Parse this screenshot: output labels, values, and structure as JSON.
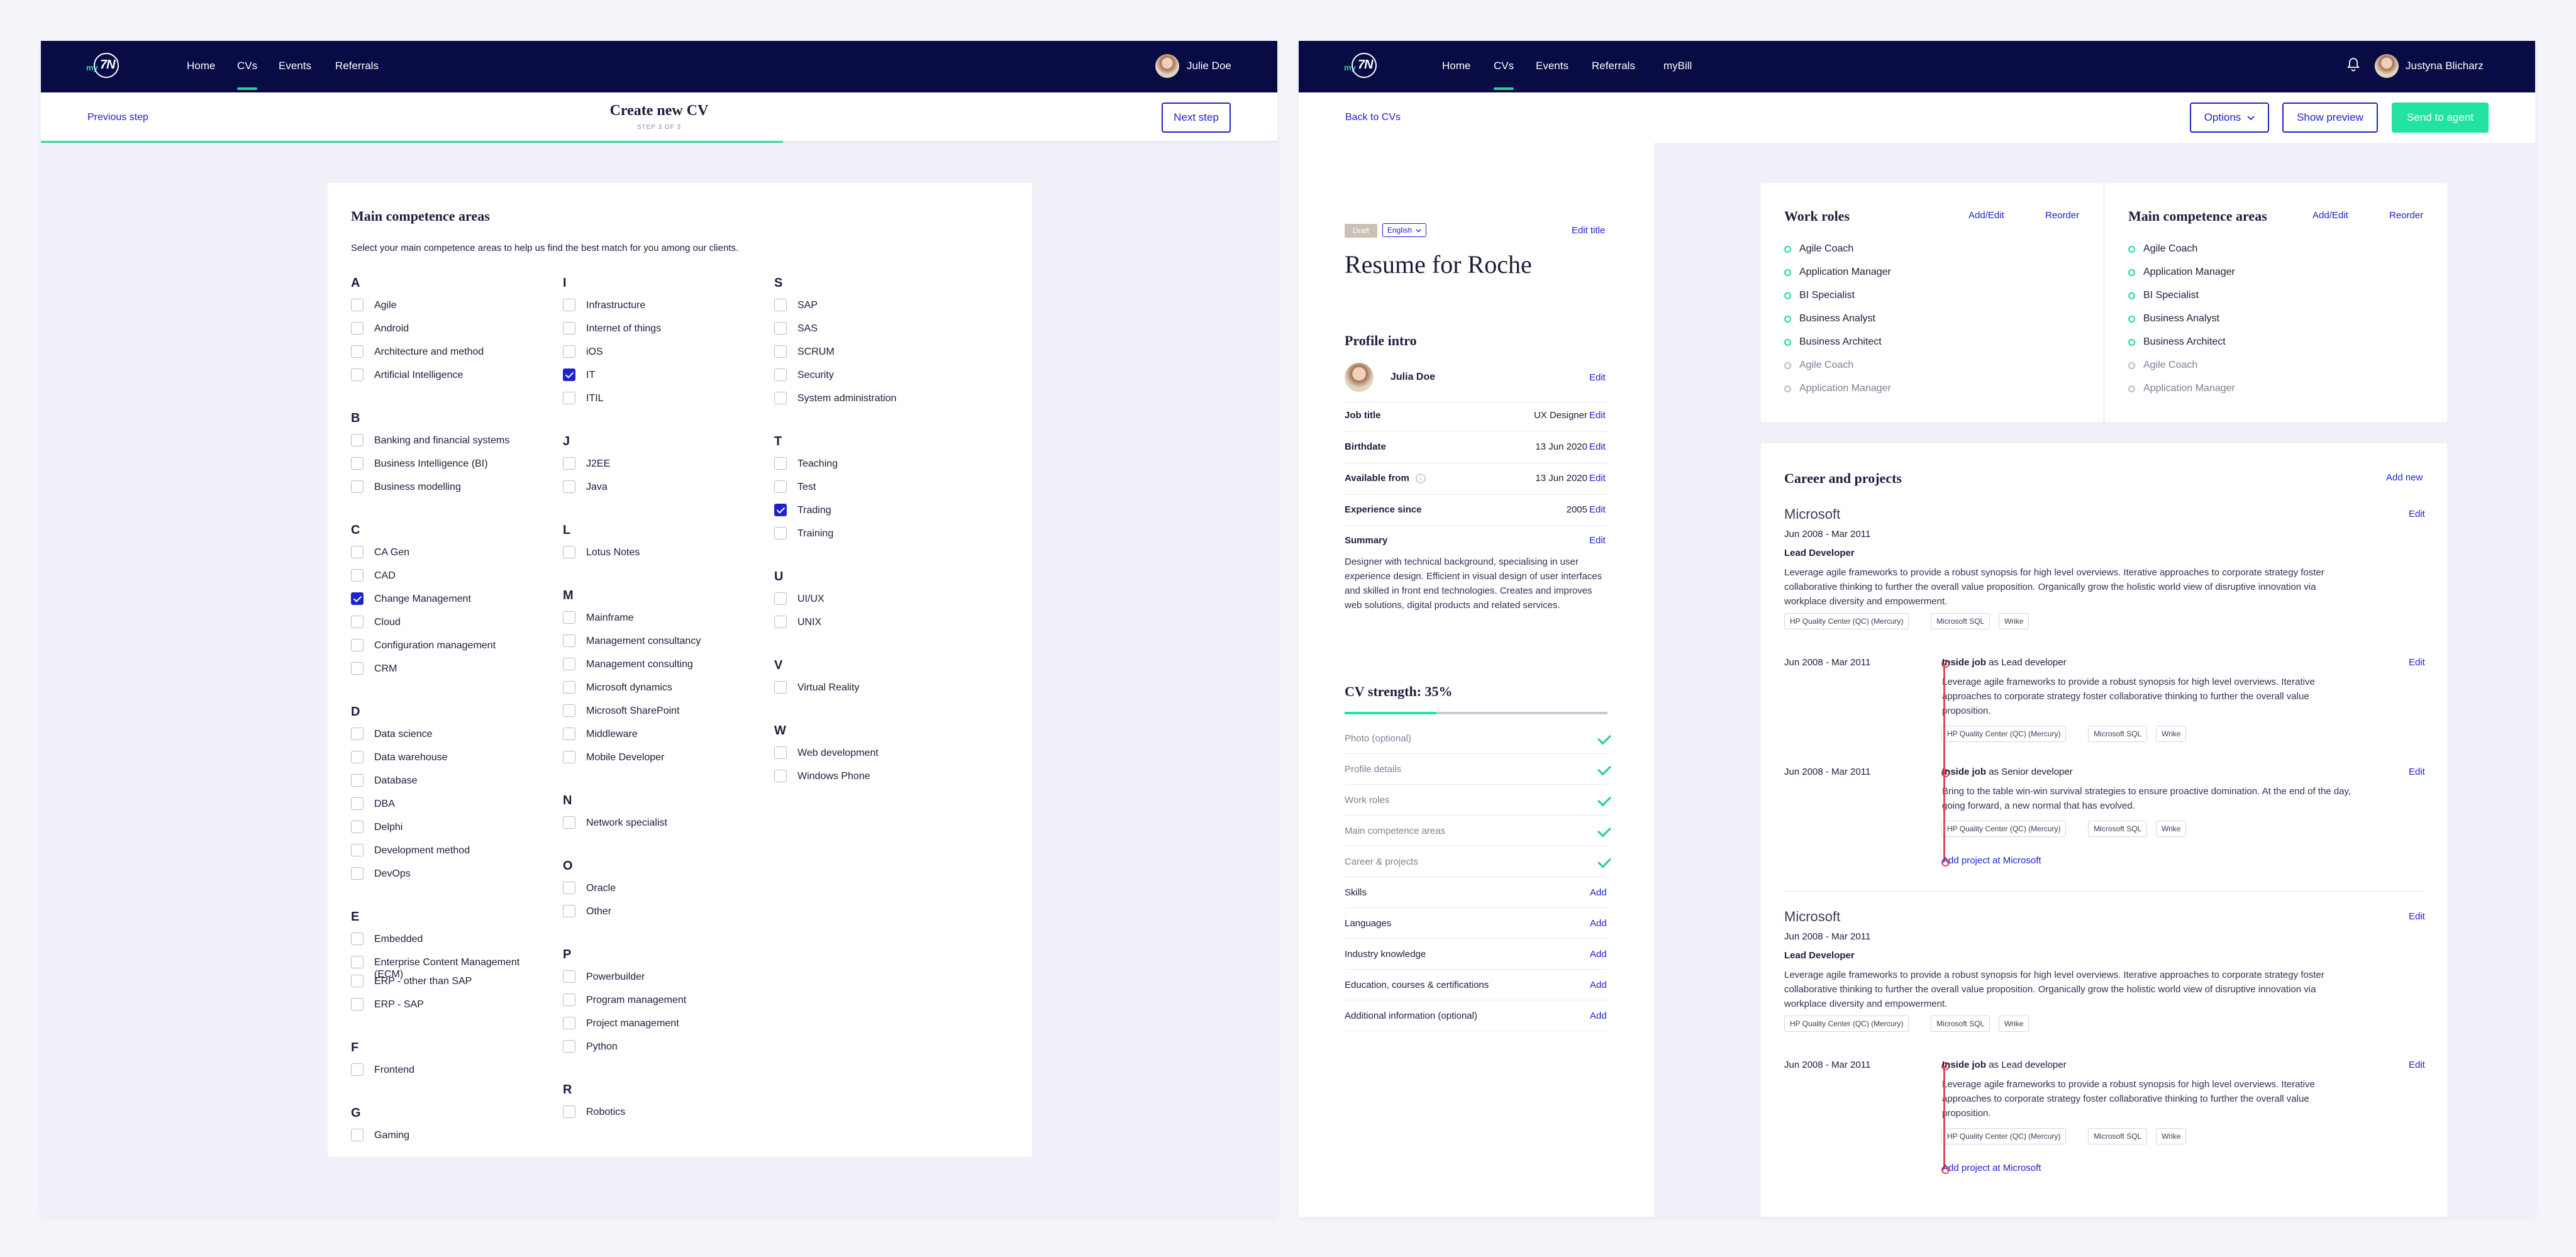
{
  "left": {
    "nav": {
      "links": [
        "Home",
        "CVs",
        "Events",
        "Referrals"
      ],
      "user": "Julie Doe"
    },
    "subbar": {
      "prev": "Previous step",
      "title": "Create new CV",
      "step": "STEP 3 OF 3",
      "next": "Next step"
    },
    "progress_fraction": 0.6,
    "card": {
      "title": "Main competence areas",
      "desc": "Select your main competence areas to help us find the best match for you among our clients.",
      "columns": [
        [
          {
            "letter": "A",
            "items": [
              {
                "label": "Agile",
                "checked": false
              },
              {
                "label": "Android",
                "checked": false
              },
              {
                "label": "Architecture and method",
                "checked": false
              },
              {
                "label": "Artificial Intelligence",
                "checked": false
              }
            ]
          },
          {
            "letter": "B",
            "items": [
              {
                "label": "Banking and financial systems",
                "checked": false
              },
              {
                "label": "Business Intelligence (BI)",
                "checked": false
              },
              {
                "label": "Business modelling",
                "checked": false
              }
            ]
          },
          {
            "letter": "C",
            "items": [
              {
                "label": "CA Gen",
                "checked": false
              },
              {
                "label": "CAD",
                "checked": false
              },
              {
                "label": "Change Management",
                "checked": true
              },
              {
                "label": "Cloud",
                "checked": false
              },
              {
                "label": "Configuration management",
                "checked": false
              },
              {
                "label": "CRM",
                "checked": false
              }
            ]
          },
          {
            "letter": "D",
            "items": [
              {
                "label": "Data science",
                "checked": false
              },
              {
                "label": "Data warehouse",
                "checked": false
              },
              {
                "label": "Database",
                "checked": false
              },
              {
                "label": "DBA",
                "checked": false
              },
              {
                "label": "Delphi",
                "checked": false
              },
              {
                "label": "Development method",
                "checked": false
              },
              {
                "label": "DevOps",
                "checked": false
              }
            ]
          },
          {
            "letter": "E",
            "items": [
              {
                "label": "Embedded",
                "checked": false
              },
              {
                "label": "Enterprise Content Management (ECM)",
                "checked": false
              },
              {
                "label": "ERP - other than SAP",
                "checked": false
              },
              {
                "label": "ERP - SAP",
                "checked": false
              }
            ]
          },
          {
            "letter": "F",
            "items": [
              {
                "label": "Frontend",
                "checked": false
              }
            ]
          },
          {
            "letter": "G",
            "items": [
              {
                "label": "Gaming",
                "checked": false
              }
            ]
          }
        ],
        [
          {
            "letter": "I",
            "items": [
              {
                "label": "Infrastructure",
                "checked": false
              },
              {
                "label": "Internet of things",
                "checked": false
              },
              {
                "label": "iOS",
                "checked": false
              },
              {
                "label": "IT",
                "checked": true
              },
              {
                "label": "ITIL",
                "checked": false
              }
            ]
          },
          {
            "letter": "J",
            "items": [
              {
                "label": "J2EE",
                "checked": false
              },
              {
                "label": "Java",
                "checked": false
              }
            ]
          },
          {
            "letter": "L",
            "items": [
              {
                "label": "Lotus Notes",
                "checked": false
              }
            ]
          },
          {
            "letter": "M",
            "items": [
              {
                "label": "Mainframe",
                "checked": false
              },
              {
                "label": "Management consultancy",
                "checked": false
              },
              {
                "label": "Management consulting",
                "checked": false
              },
              {
                "label": "Microsoft dynamics",
                "checked": false
              },
              {
                "label": "Microsoft SharePoint",
                "checked": false
              },
              {
                "label": "Middleware",
                "checked": false
              },
              {
                "label": "Mobile Developer",
                "checked": false
              }
            ]
          },
          {
            "letter": "N",
            "items": [
              {
                "label": "Network specialist",
                "checked": false
              }
            ]
          },
          {
            "letter": "O",
            "items": [
              {
                "label": "Oracle",
                "checked": false
              },
              {
                "label": "Other",
                "checked": false
              }
            ]
          },
          {
            "letter": "P",
            "items": [
              {
                "label": "Powerbuilder",
                "checked": false
              },
              {
                "label": "Program management",
                "checked": false
              },
              {
                "label": "Project management",
                "checked": false
              },
              {
                "label": "Python",
                "checked": false
              }
            ]
          },
          {
            "letter": "R",
            "items": [
              {
                "label": "Robotics",
                "checked": false
              }
            ]
          }
        ],
        [
          {
            "letter": "S",
            "items": [
              {
                "label": "SAP",
                "checked": false
              },
              {
                "label": "SAS",
                "checked": false
              },
              {
                "label": "SCRUM",
                "checked": false
              },
              {
                "label": "Security",
                "checked": false
              },
              {
                "label": "System administration",
                "checked": false
              }
            ]
          },
          {
            "letter": "T",
            "items": [
              {
                "label": "Teaching",
                "checked": false
              },
              {
                "label": "Test",
                "checked": false
              },
              {
                "label": "Trading",
                "checked": true
              },
              {
                "label": "Training",
                "checked": false
              }
            ]
          },
          {
            "letter": "U",
            "items": [
              {
                "label": "UI/UX",
                "checked": false
              },
              {
                "label": "UNIX",
                "checked": false
              }
            ]
          },
          {
            "letter": "V",
            "items": [
              {
                "label": "Virtual Reality",
                "checked": false
              }
            ]
          },
          {
            "letter": "W",
            "items": [
              {
                "label": "Web development",
                "checked": false
              },
              {
                "label": "Windows Phone",
                "checked": false
              }
            ]
          }
        ]
      ]
    }
  },
  "right": {
    "nav": {
      "links": [
        "Home",
        "CVs",
        "Events",
        "Referrals",
        "myBill"
      ],
      "user": "Justyna Blicharz"
    },
    "subbar": {
      "back": "Back to CVs",
      "options": "Options",
      "preview": "Show preview",
      "send": "Send to agent"
    },
    "resume": {
      "badge": "Draft",
      "language": "English",
      "edit_title": "Edit title",
      "title": "Resume for Roche",
      "profile_heading": "Profile intro",
      "name": "Julia Doe",
      "edit": "Edit",
      "rows": [
        {
          "label": "Job title",
          "value": "UX Designer"
        },
        {
          "label": "Birthdate",
          "value": "13 Jun 2020"
        },
        {
          "label": "Available from",
          "value": "13 Jun 2020"
        },
        {
          "label": "Experience since",
          "value": "2005"
        }
      ],
      "summary_label": "Summary",
      "summary": "Designer with technical background, specialising in user experience design. Efficient in visual design of user interfaces and skilled in front end technologies. Creates and improves web solutions, digital products and related services.",
      "strength_title": "CV strength: 35%",
      "strength_fraction": 0.35,
      "done_items": [
        "Photo (optional)",
        "Profile details",
        "Work roles",
        "Main competence areas",
        "Career & projects"
      ],
      "add_items": [
        "Skills",
        "Languages",
        "Industry knowledge",
        "Education, courses & certifications",
        "Additional information (optional)"
      ],
      "add_label": "Add"
    },
    "work_roles": {
      "title": "Work roles",
      "addedit": "Add/Edit",
      "reorder": "Reorder",
      "items": [
        {
          "label": "Agile Coach",
          "muted": false
        },
        {
          "label": "Application Manager",
          "muted": false
        },
        {
          "label": "BI Specialist",
          "muted": false
        },
        {
          "label": "Business Analyst",
          "muted": false
        },
        {
          "label": "Business Architect",
          "muted": false
        },
        {
          "label": "Agile Coach",
          "muted": true
        },
        {
          "label": "Application Manager",
          "muted": true
        }
      ]
    },
    "competence": {
      "title": "Main competence areas",
      "addedit": "Add/Edit",
      "reorder": "Reorder",
      "items": [
        {
          "label": "Agile Coach",
          "muted": false
        },
        {
          "label": "Application Manager",
          "muted": false
        },
        {
          "label": "BI Specialist",
          "muted": false
        },
        {
          "label": "Business Analyst",
          "muted": false
        },
        {
          "label": "Business Architect",
          "muted": false
        },
        {
          "label": "Agile Coach",
          "muted": true
        },
        {
          "label": "Application Manager",
          "muted": true
        }
      ]
    },
    "career": {
      "title": "Career and projects",
      "add_new": "Add new",
      "edit": "Edit",
      "companies": [
        {
          "name": "Microsoft",
          "dates": "Jun 2008 - Mar 2011",
          "role": "Lead Developer",
          "desc": "Leverage agile frameworks to provide a robust synopsis for high level overviews. Iterative approaches to corporate strategy foster collaborative thinking to further the overall value proposition. Organically grow the holistic world view of disruptive innovation via workplace diversity and empowerment.",
          "tags": [
            "HP Quality Center (QC) (Mercury)",
            "Microsoft SQL",
            "Wrike"
          ],
          "projects": [
            {
              "dates": "Jun 2008 - Mar 2011",
              "title": "Inside job",
              "as": "as Lead developer",
              "desc": "Leverage agile frameworks to provide a robust synopsis for high level overviews. Iterative approaches to corporate strategy foster collaborative thinking to further the overall value proposition.",
              "tags": [
                "HP Quality Center (QC) (Mercury)",
                "Microsoft SQL",
                "Wrike"
              ]
            },
            {
              "dates": "Jun 2008 - Mar 2011",
              "title": "Inside job",
              "as": "as Senior developer",
              "desc": "Bring to the table win-win survival strategies to ensure proactive domination. At the end of the day, going forward, a new normal that has evolved.",
              "tags": [
                "HP Quality Center (QC) (Mercury)",
                "Microsoft SQL",
                "Wrike"
              ]
            }
          ],
          "add_project": "Add project at Microsoft"
        },
        {
          "name": "Microsoft",
          "dates": "Jun 2008 - Mar 2011",
          "role": "Lead Developer",
          "desc": "Leverage agile frameworks to provide a robust synopsis for high level overviews. Iterative approaches to corporate strategy foster collaborative thinking to further the overall value proposition. Organically grow the holistic world view of disruptive innovation via workplace diversity and empowerment.",
          "tags": [
            "HP Quality Center (QC) (Mercury)",
            "Microsoft SQL",
            "Wrike"
          ],
          "projects": [
            {
              "dates": "Jun 2008 - Mar 2011",
              "title": "Inside job",
              "as": "as Lead developer",
              "desc": "Leverage agile frameworks to provide a robust synopsis for high level overviews. Iterative approaches to corporate strategy foster collaborative thinking to further the overall value proposition.",
              "tags": [
                "HP Quality Center (QC) (Mercury)",
                "Microsoft SQL",
                "Wrike"
              ]
            }
          ],
          "add_project": "Add project at Microsoft"
        }
      ]
    }
  },
  "colors": {
    "navy": "#080b44",
    "accent_blue": "#1f23c9",
    "green": "#22e3a1",
    "timeline_red": "#e04a5a"
  },
  "icons": {
    "bell": "bell-icon",
    "chevron": "chevron-down-icon",
    "info": "info-icon",
    "check": "check-icon"
  }
}
